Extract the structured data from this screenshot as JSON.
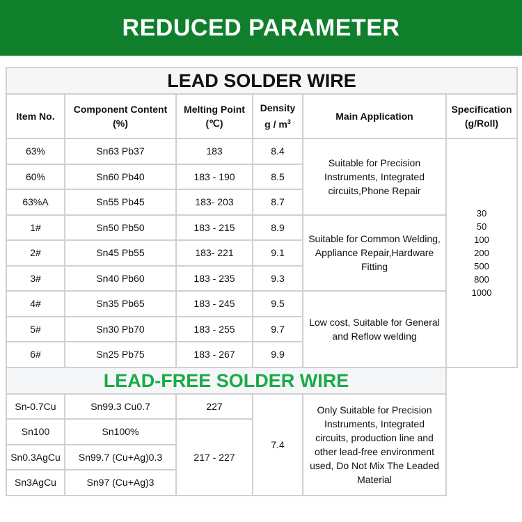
{
  "banner": {
    "title": "REDUCED PARAMETER"
  },
  "lead": {
    "title": "LEAD SOLDER WIRE",
    "headers": {
      "item": "Item No.",
      "component_1": "Component Content",
      "component_2": "(%)",
      "melting_1": "Melting Point",
      "melting_2": "(℃)",
      "density_1": "Density",
      "density_2": "g / m",
      "density_sup": "3",
      "application": "Main Application",
      "spec_1": "Specification",
      "spec_2": "(g/Roll)"
    },
    "rows": [
      {
        "item": "63%",
        "component": "Sn63 Pb37",
        "melting": "183",
        "density": "8.4"
      },
      {
        "item": "60%",
        "component": "Sn60 Pb40",
        "melting": "183 - 190",
        "density": "8.5"
      },
      {
        "item": "63%A",
        "component": "Sn55 Pb45",
        "melting": "183- 203",
        "density": "8.7"
      },
      {
        "item": "1#",
        "component": "Sn50 Pb50",
        "melting": "183 - 215",
        "density": "8.9"
      },
      {
        "item": "2#",
        "component": "Sn45 Pb55",
        "melting": "183- 221",
        "density": "9.1"
      },
      {
        "item": "3#",
        "component": "Sn40 Pb60",
        "melting": "183 - 235",
        "density": "9.3"
      },
      {
        "item": "4#",
        "component": "Sn35 Pb65",
        "melting": "183 - 245",
        "density": "9.5"
      },
      {
        "item": "5#",
        "component": "Sn30 Pb70",
        "melting": "183 - 255",
        "density": "9.7"
      },
      {
        "item": "6#",
        "component": "Sn25 Pb75",
        "melting": "183 - 267",
        "density": "9.9"
      }
    ],
    "applications": [
      "Suitable for Precision Instruments, Integrated circuits,Phone Repair",
      "Suitable for Common Welding, Appliance Repair,Hardware Fitting",
      "Low cost, Suitable for General and Reflow welding"
    ],
    "specifications": [
      "30",
      "50",
      "100",
      "200",
      "500",
      "800",
      "1000"
    ]
  },
  "lead_free": {
    "title": "LEAD-FREE SOLDER WIRE",
    "rows": [
      {
        "item": "Sn-0.7Cu",
        "component": "Sn99.3 Cu0.7"
      },
      {
        "item": "Sn100",
        "component": "Sn100%"
      },
      {
        "item": "Sn0.3AgCu",
        "component": "Sn99.7 (Cu+Ag)0.3"
      },
      {
        "item": "Sn3AgCu",
        "component": "Sn97 (Cu+Ag)3"
      }
    ],
    "melting": [
      "227",
      "217 - 227"
    ],
    "density": "7.4",
    "application": "Only Suitable for Precision Instruments, Integrated circuits, production line and other lead-free environment used, Do Not Mix The Leaded Material"
  },
  "colors": {
    "banner": "#0f7f2b",
    "lead_free_title": "#1aaa48"
  }
}
